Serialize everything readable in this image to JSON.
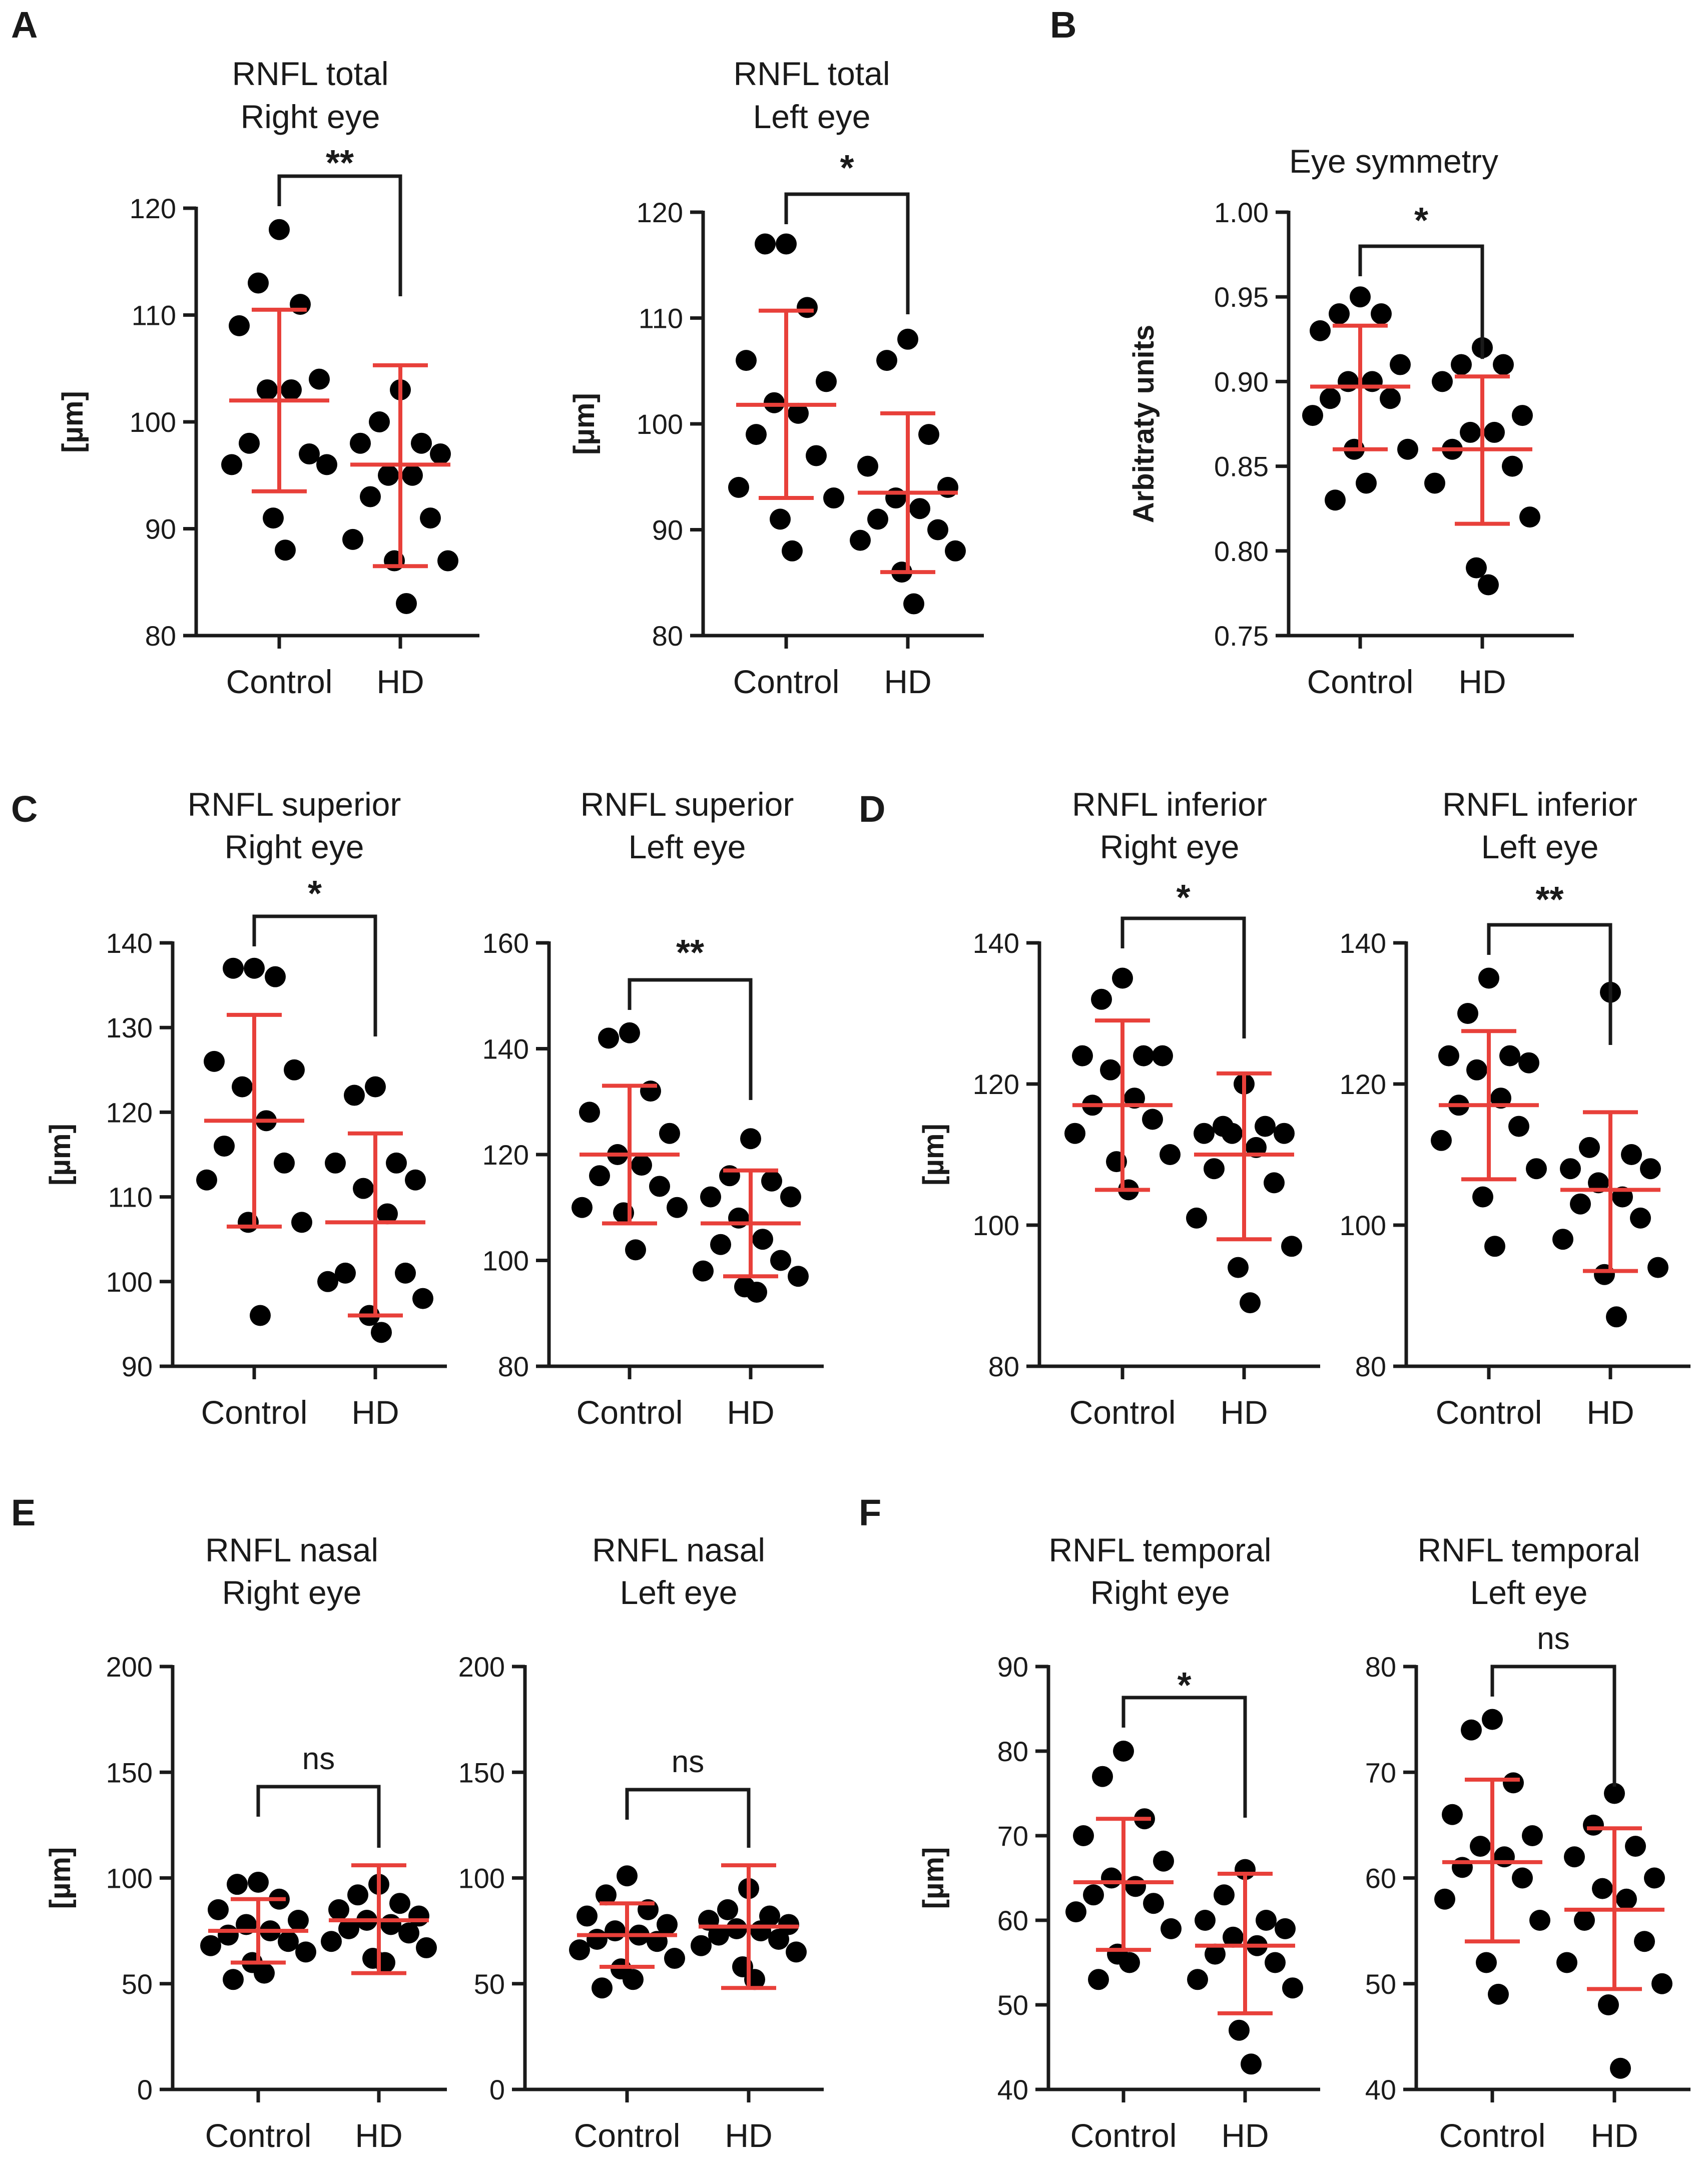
{
  "colors": {
    "points": "#000000",
    "error_bars": "#e8403a",
    "axes": "#1a1a1a"
  },
  "panel_letters": [
    {
      "id": "A",
      "text": "A"
    },
    {
      "id": "B",
      "text": "B"
    },
    {
      "id": "C",
      "text": "C"
    },
    {
      "id": "D",
      "text": "D"
    },
    {
      "id": "E",
      "text": "E"
    },
    {
      "id": "F",
      "text": "F"
    }
  ],
  "chart_data": [
    {
      "id": "A1",
      "panel": "A",
      "type": "scatter",
      "title": [
        "RNFL total",
        "Right eye"
      ],
      "ylabel": "[µm]",
      "ylim": [
        80,
        120
      ],
      "yticks": [
        80,
        90,
        100,
        110,
        120
      ],
      "categories": [
        "Control",
        "HD"
      ],
      "groups": [
        {
          "name": "Control",
          "mean": 102,
          "sd_low": 93.5,
          "sd_high": 110.5,
          "points": [
            118,
            113,
            111,
            109,
            104,
            103,
            103,
            98,
            97,
            96,
            96,
            91,
            88
          ]
        },
        {
          "name": "HD",
          "mean": 96,
          "sd_low": 86.5,
          "sd_high": 105.3,
          "points": [
            103,
            100,
            98,
            98,
            97,
            95,
            95,
            93,
            91,
            89,
            87,
            87,
            83
          ]
        }
      ],
      "significance": "**"
    },
    {
      "id": "A2",
      "panel": "A",
      "type": "scatter",
      "title": [
        "RNFL total",
        "Left eye"
      ],
      "ylabel": "[µm]",
      "ylim": [
        80,
        120
      ],
      "yticks": [
        80,
        90,
        100,
        110,
        120
      ],
      "categories": [
        "Control",
        "HD"
      ],
      "groups": [
        {
          "name": "Control",
          "mean": 101.8,
          "sd_low": 93,
          "sd_high": 110.7,
          "points": [
            117,
            117,
            111,
            106,
            104,
            102,
            101,
            99,
            97,
            94,
            93,
            91,
            88
          ]
        },
        {
          "name": "HD",
          "mean": 93.5,
          "sd_low": 86,
          "sd_high": 101,
          "points": [
            108,
            106,
            99,
            96,
            94,
            93,
            92,
            91,
            90,
            89,
            88,
            86,
            83
          ]
        }
      ],
      "significance": "*"
    },
    {
      "id": "B",
      "panel": "B",
      "type": "scatter",
      "title": [
        "Eye symmetry"
      ],
      "ylabel": "Arbitraty units",
      "ylim": [
        0.75,
        1.0
      ],
      "yticks": [
        0.75,
        0.8,
        0.85,
        0.9,
        0.95,
        1.0
      ],
      "ytick_labels": [
        "0.75",
        "0.80",
        "0.85",
        "0.90",
        "0.95",
        "1.00"
      ],
      "categories": [
        "Control",
        "HD"
      ],
      "groups": [
        {
          "name": "Control",
          "mean": 0.897,
          "sd_low": 0.86,
          "sd_high": 0.933,
          "points": [
            0.95,
            0.94,
            0.94,
            0.93,
            0.91,
            0.9,
            0.9,
            0.89,
            0.89,
            0.88,
            0.86,
            0.86,
            0.84,
            0.83
          ]
        },
        {
          "name": "HD",
          "mean": 0.86,
          "sd_low": 0.816,
          "sd_high": 0.903,
          "points": [
            0.92,
            0.91,
            0.91,
            0.9,
            0.88,
            0.87,
            0.87,
            0.86,
            0.85,
            0.84,
            0.82,
            0.79,
            0.78
          ]
        }
      ],
      "significance": "*"
    },
    {
      "id": "C1",
      "panel": "C",
      "type": "scatter",
      "title": [
        "RNFL superior",
        "Right eye"
      ],
      "ylabel": "[µm]",
      "ylim": [
        90,
        140
      ],
      "yticks": [
        90,
        100,
        110,
        120,
        130,
        140
      ],
      "categories": [
        "Control",
        "HD"
      ],
      "groups": [
        {
          "name": "Control",
          "mean": 119,
          "sd_low": 106.5,
          "sd_high": 131.5,
          "points": [
            137,
            137,
            136,
            126,
            125,
            123,
            119,
            116,
            114,
            112,
            107,
            107,
            96
          ]
        },
        {
          "name": "HD",
          "mean": 107,
          "sd_low": 96,
          "sd_high": 117.5,
          "points": [
            123,
            122,
            114,
            114,
            112,
            111,
            108,
            101,
            101,
            100,
            98,
            96,
            94
          ]
        }
      ],
      "significance": "*"
    },
    {
      "id": "C2",
      "panel": "C",
      "type": "scatter",
      "title": [
        "RNFL superior",
        "Left eye"
      ],
      "ylabel": "",
      "ylim": [
        80,
        160
      ],
      "yticks": [
        80,
        100,
        120,
        140,
        160
      ],
      "categories": [
        "Control",
        "HD"
      ],
      "groups": [
        {
          "name": "Control",
          "mean": 120,
          "sd_low": 107,
          "sd_high": 133,
          "points": [
            143,
            142,
            132,
            128,
            124,
            120,
            118,
            116,
            114,
            110,
            110,
            109,
            102
          ]
        },
        {
          "name": "HD",
          "mean": 107,
          "sd_low": 97,
          "sd_high": 117,
          "points": [
            123,
            116,
            115,
            112,
            112,
            108,
            104,
            103,
            100,
            98,
            97,
            95,
            94
          ]
        }
      ],
      "significance": "**"
    },
    {
      "id": "D1",
      "panel": "D",
      "type": "scatter",
      "title": [
        "RNFL inferior",
        "Right eye"
      ],
      "ylabel": "[µm]",
      "ylim": [
        80,
        140
      ],
      "yticks": [
        80,
        100,
        120,
        140
      ],
      "categories": [
        "Control",
        "HD"
      ],
      "groups": [
        {
          "name": "Control",
          "mean": 117,
          "sd_low": 105,
          "sd_high": 129,
          "points": [
            135,
            132,
            124,
            124,
            124,
            122,
            118,
            117,
            115,
            113,
            110,
            109,
            105
          ]
        },
        {
          "name": "HD",
          "mean": 110,
          "sd_low": 98,
          "sd_high": 121.5,
          "points": [
            120,
            114,
            114,
            113,
            113,
            113,
            111,
            108,
            106,
            101,
            97,
            94,
            89
          ]
        }
      ],
      "significance": "*"
    },
    {
      "id": "D2",
      "panel": "D",
      "type": "scatter",
      "title": [
        "RNFL inferior",
        "Left eye"
      ],
      "ylabel": "",
      "ylim": [
        80,
        140
      ],
      "yticks": [
        80,
        100,
        120,
        140
      ],
      "categories": [
        "Control",
        "HD"
      ],
      "groups": [
        {
          "name": "Control",
          "mean": 117,
          "sd_low": 106.5,
          "sd_high": 127.5,
          "points": [
            135,
            130,
            124,
            124,
            123,
            122,
            118,
            117,
            114,
            112,
            108,
            104,
            97
          ]
        },
        {
          "name": "HD",
          "mean": 105,
          "sd_low": 93.5,
          "sd_high": 116,
          "points": [
            133,
            111,
            110,
            108,
            108,
            106,
            104,
            103,
            101,
            98,
            94,
            93,
            87
          ]
        }
      ],
      "significance": "**"
    },
    {
      "id": "E1",
      "panel": "E",
      "type": "scatter",
      "title": [
        "RNFL nasal",
        "Right eye"
      ],
      "ylabel": "[µm]",
      "ylim": [
        0,
        200
      ],
      "yticks": [
        0,
        50,
        100,
        150,
        200
      ],
      "categories": [
        "Control",
        "HD"
      ],
      "groups": [
        {
          "name": "Control",
          "mean": 75,
          "sd_low": 60,
          "sd_high": 90,
          "points": [
            98,
            97,
            90,
            85,
            80,
            78,
            75,
            73,
            70,
            68,
            65,
            60,
            55,
            52
          ]
        },
        {
          "name": "HD",
          "mean": 80,
          "sd_low": 55,
          "sd_high": 106,
          "points": [
            97,
            92,
            88,
            85,
            82,
            80,
            78,
            76,
            74,
            70,
            67,
            62,
            60
          ]
        }
      ],
      "significance": "ns"
    },
    {
      "id": "E2",
      "panel": "E",
      "type": "scatter",
      "title": [
        "RNFL nasal",
        "Left eye"
      ],
      "ylabel": "",
      "ylim": [
        0,
        200
      ],
      "yticks": [
        0,
        50,
        100,
        150,
        200
      ],
      "categories": [
        "Control",
        "HD"
      ],
      "groups": [
        {
          "name": "Control",
          "mean": 73,
          "sd_low": 58,
          "sd_high": 88,
          "points": [
            101,
            92,
            85,
            82,
            78,
            75,
            73,
            71,
            70,
            66,
            62,
            57,
            52,
            48
          ]
        },
        {
          "name": "HD",
          "mean": 77,
          "sd_low": 48,
          "sd_high": 106,
          "points": [
            95,
            85,
            82,
            80,
            78,
            76,
            75,
            73,
            71,
            68,
            65,
            58,
            52
          ]
        }
      ],
      "significance": "ns"
    },
    {
      "id": "F1",
      "panel": "F",
      "type": "scatter",
      "title": [
        "RNFL temporal",
        "Right eye"
      ],
      "ylabel": "[µm]",
      "ylim": [
        40,
        90
      ],
      "yticks": [
        40,
        50,
        60,
        70,
        80,
        90
      ],
      "categories": [
        "Control",
        "HD"
      ],
      "groups": [
        {
          "name": "Control",
          "mean": 64.5,
          "sd_low": 56.5,
          "sd_high": 72,
          "points": [
            80,
            77,
            72,
            70,
            67,
            65,
            64,
            63,
            62,
            61,
            59,
            56,
            55,
            53
          ]
        },
        {
          "name": "HD",
          "mean": 57,
          "sd_low": 49,
          "sd_high": 65.5,
          "points": [
            66,
            63,
            60,
            60,
            59,
            58,
            57,
            56,
            55,
            53,
            52,
            47,
            43
          ]
        }
      ],
      "significance": "*"
    },
    {
      "id": "F2",
      "panel": "F",
      "type": "scatter",
      "title": [
        "RNFL temporal",
        "Left eye"
      ],
      "ylabel": "",
      "ylim": [
        40,
        80
      ],
      "yticks": [
        40,
        50,
        60,
        70,
        80
      ],
      "categories": [
        "Control",
        "HD"
      ],
      "groups": [
        {
          "name": "Control",
          "mean": 61.5,
          "sd_low": 54,
          "sd_high": 69.3,
          "points": [
            75,
            74,
            69,
            66,
            64,
            63,
            62,
            61,
            60,
            58,
            56,
            52,
            49
          ]
        },
        {
          "name": "HD",
          "mean": 57,
          "sd_low": 49.5,
          "sd_high": 64.7,
          "points": [
            68,
            65,
            63,
            62,
            60,
            59,
            58,
            56,
            54,
            52,
            50,
            48,
            42
          ]
        }
      ],
      "significance": "ns"
    }
  ]
}
